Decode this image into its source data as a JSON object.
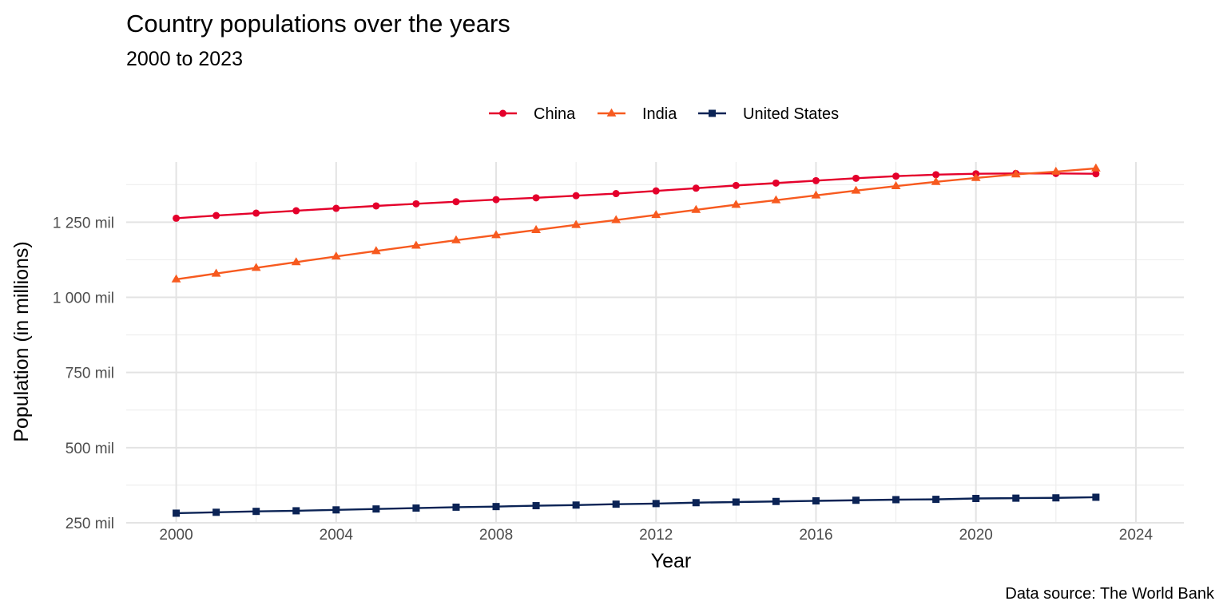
{
  "chart_data": {
    "type": "line",
    "title": "Country populations over the years",
    "subtitle": "2000 to 2023",
    "xlabel": "Year",
    "ylabel": "Population (in millions)",
    "caption": "Data source: The World Bank",
    "x": [
      2000,
      2001,
      2002,
      2003,
      2004,
      2005,
      2006,
      2007,
      2008,
      2009,
      2010,
      2011,
      2012,
      2013,
      2014,
      2015,
      2016,
      2017,
      2018,
      2019,
      2020,
      2021,
      2022,
      2023
    ],
    "x_ticks": [
      2000,
      2004,
      2008,
      2012,
      2016,
      2020,
      2024
    ],
    "x_tick_labels": [
      "2000",
      "2004",
      "2008",
      "2012",
      "2016",
      "2020",
      "2024"
    ],
    "y_ticks": [
      250,
      500,
      750,
      1000,
      1250
    ],
    "y_tick_labels": [
      "250 mil",
      "500 mil",
      "750 mil",
      "1 000 mil",
      "1 250 mil"
    ],
    "xlim": [
      1998.75,
      2025.2
    ],
    "ylim": [
      250,
      1450
    ],
    "grid": true,
    "legend_position": "top",
    "series": [
      {
        "name": "China",
        "color": "#e4002b",
        "marker": "circle",
        "values": [
          1263,
          1272,
          1280,
          1288,
          1296,
          1304,
          1311,
          1318,
          1325,
          1331,
          1338,
          1345,
          1354,
          1363,
          1372,
          1380,
          1388,
          1396,
          1403,
          1408,
          1411,
          1412,
          1412,
          1411
        ]
      },
      {
        "name": "India",
        "color": "#f75a1f",
        "marker": "triangle",
        "values": [
          1060,
          1079,
          1098,
          1117,
          1136,
          1154,
          1172,
          1190,
          1207,
          1224,
          1241,
          1257,
          1274,
          1291,
          1308,
          1323,
          1339,
          1355,
          1370,
          1384,
          1397,
          1409,
          1418,
          1429
        ]
      },
      {
        "name": "United States",
        "color": "#0b2355",
        "marker": "square",
        "values": [
          282,
          285,
          288,
          290,
          293,
          296,
          299,
          302,
          304,
          307,
          309,
          312,
          314,
          317,
          319,
          321,
          323,
          325,
          327,
          328,
          331,
          332,
          333,
          335
        ]
      }
    ]
  }
}
